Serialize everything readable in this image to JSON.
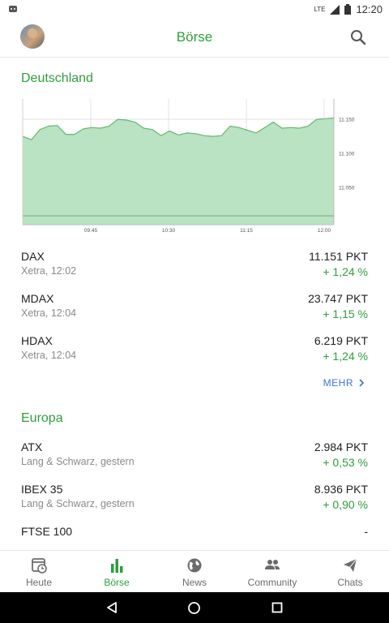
{
  "status": {
    "time": "12:20",
    "network": "LTE"
  },
  "header": {
    "title": "Börse"
  },
  "sections": {
    "germany": {
      "title": "Deutschland"
    },
    "europe": {
      "title": "Europa"
    }
  },
  "chart_data": {
    "type": "area",
    "title": "",
    "x_ticks": [
      "09:45",
      "10:30",
      "11:15",
      "12:00"
    ],
    "y_ticks": [
      "11.150",
      "11.100",
      "11.050"
    ],
    "ylim": [
      10995,
      11180
    ],
    "grid": true,
    "series": [
      {
        "values": [
          11125,
          11120,
          11135,
          11140,
          11141,
          11128,
          11128,
          11136,
          11138,
          11137,
          11140,
          11150,
          11149,
          11146,
          11137,
          11135,
          11126,
          11133,
          11127,
          11130,
          11129,
          11126,
          11125,
          11126,
          11140,
          11138,
          11134,
          11130,
          11138,
          11146,
          11137,
          11138,
          11137,
          11140,
          11150,
          11151,
          11152
        ]
      }
    ],
    "baseline": 11008,
    "color": "#b9e3c2",
    "line_color": "#5dbb6e"
  },
  "germany_quotes": [
    {
      "name": "DAX",
      "sub": "Xetra, 12:02",
      "value": "11.151 PKT",
      "change": "+ 1,24 %"
    },
    {
      "name": "MDAX",
      "sub": "Xetra, 12:04",
      "value": "23.747 PKT",
      "change": "+ 1,15 %"
    },
    {
      "name": "HDAX",
      "sub": "Xetra, 12:04",
      "value": "6.219 PKT",
      "change": "+ 1,24 %"
    }
  ],
  "more_label": "MEHR",
  "europe_quotes": [
    {
      "name": "ATX",
      "sub": "Lang & Schwarz, gestern",
      "value": "2.984 PKT",
      "change": "+ 0,53 %"
    },
    {
      "name": "IBEX 35",
      "sub": "Lang & Schwarz, gestern",
      "value": "8.936 PKT",
      "change": "+ 0,90 %"
    },
    {
      "name": "FTSE 100",
      "sub": "",
      "value": "-",
      "change": ""
    }
  ],
  "nav": [
    {
      "label": "Heute",
      "icon": "calendar-clock-icon"
    },
    {
      "label": "Börse",
      "icon": "bar-chart-icon"
    },
    {
      "label": "News",
      "icon": "globe-icon"
    },
    {
      "label": "Community",
      "icon": "people-icon"
    },
    {
      "label": "Chats",
      "icon": "send-icon"
    }
  ],
  "colors": {
    "accent": "#2e9e3b",
    "link": "#3b74d1"
  }
}
